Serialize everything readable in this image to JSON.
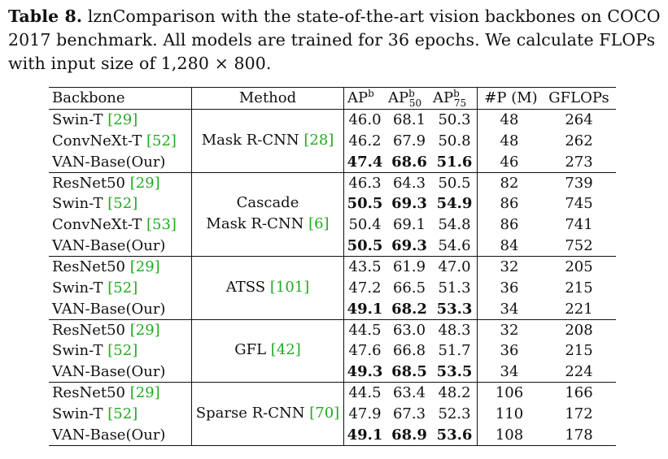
{
  "caption": {
    "label": "Table 8.",
    "text": "lznComparison with the state-of-the-art vision backbones on COCO 2017 benchmark. All models are trained for 36 epochs. We calculate FLOPs with input size of 1,280 × 800."
  },
  "headers": {
    "backbone": "Backbone",
    "method": "Method",
    "ap": "AP",
    "ap_sup": "b",
    "ap50": "AP",
    "ap50_sup": "b",
    "ap50_sub": "50",
    "ap75": "AP",
    "ap75_sup": "b",
    "ap75_sub": "75",
    "params": "#P (M)",
    "gflops": "GFLOPs"
  },
  "colors": {
    "citation": "#22aa22",
    "text": "#111111"
  },
  "groups": [
    {
      "method": [
        "Mask R-CNN ",
        "[28]"
      ],
      "rows": [
        {
          "backbone": "Swin-T ",
          "cite": "[29]",
          "ap": "46.0",
          "ap50": "68.1",
          "ap75": "50.3",
          "params": "48",
          "gflops": "264",
          "bold": [
            false,
            false,
            false
          ]
        },
        {
          "backbone": "ConvNeXt-T ",
          "cite": "[52]",
          "ap": "46.2",
          "ap50": "67.9",
          "ap75": "50.8",
          "params": "48",
          "gflops": "262",
          "bold": [
            false,
            false,
            false
          ]
        },
        {
          "backbone": "VAN-Base(Our)",
          "cite": "",
          "ap": "47.4",
          "ap50": "68.6",
          "ap75": "51.6",
          "params": "46",
          "gflops": "273",
          "bold": [
            true,
            true,
            true
          ]
        }
      ]
    },
    {
      "method": [
        "Cascade",
        "Mask R-CNN ",
        "[6]"
      ],
      "rows": [
        {
          "backbone": "ResNet50 ",
          "cite": "[29]",
          "ap": "46.3",
          "ap50": "64.3",
          "ap75": "50.5",
          "params": "82",
          "gflops": "739",
          "bold": [
            false,
            false,
            false
          ]
        },
        {
          "backbone": "Swin-T ",
          "cite": "[52]",
          "ap": "50.5",
          "ap50": "69.3",
          "ap75": "54.9",
          "params": "86",
          "gflops": "745",
          "bold": [
            true,
            true,
            true
          ]
        },
        {
          "backbone": "ConvNeXt-T ",
          "cite": "[53]",
          "ap": "50.4",
          "ap50": "69.1",
          "ap75": "54.8",
          "params": "86",
          "gflops": "741",
          "bold": [
            false,
            false,
            false
          ]
        },
        {
          "backbone": "VAN-Base(Our)",
          "cite": "",
          "ap": "50.5",
          "ap50": "69.3",
          "ap75": "54.6",
          "params": "84",
          "gflops": "752",
          "bold": [
            true,
            true,
            false
          ]
        }
      ]
    },
    {
      "method": [
        "ATSS ",
        "[101]"
      ],
      "rows": [
        {
          "backbone": "ResNet50 ",
          "cite": "[29]",
          "ap": "43.5",
          "ap50": "61.9",
          "ap75": "47.0",
          "params": "32",
          "gflops": "205",
          "bold": [
            false,
            false,
            false
          ]
        },
        {
          "backbone": "Swin-T ",
          "cite": "[52]",
          "ap": "47.2",
          "ap50": "66.5",
          "ap75": "51.3",
          "params": "36",
          "gflops": "215",
          "bold": [
            false,
            false,
            false
          ]
        },
        {
          "backbone": "VAN-Base(Our)",
          "cite": "",
          "ap": "49.1",
          "ap50": "68.2",
          "ap75": "53.3",
          "params": "34",
          "gflops": "221",
          "bold": [
            true,
            true,
            true
          ]
        }
      ]
    },
    {
      "method": [
        "GFL ",
        "[42]"
      ],
      "rows": [
        {
          "backbone": "ResNet50 ",
          "cite": "[29]",
          "ap": "44.5",
          "ap50": "63.0",
          "ap75": "48.3",
          "params": "32",
          "gflops": "208",
          "bold": [
            false,
            false,
            false
          ]
        },
        {
          "backbone": "Swin-T ",
          "cite": "[52]",
          "ap": "47.6",
          "ap50": "66.8",
          "ap75": "51.7",
          "params": "36",
          "gflops": "215",
          "bold": [
            false,
            false,
            false
          ]
        },
        {
          "backbone": "VAN-Base(Our)",
          "cite": "",
          "ap": "49.3",
          "ap50": "68.5",
          "ap75": "53.5",
          "params": "34",
          "gflops": "224",
          "bold": [
            true,
            true,
            true
          ]
        }
      ]
    },
    {
      "method": [
        "Sparse R-CNN ",
        "[70]"
      ],
      "rows": [
        {
          "backbone": "ResNet50 ",
          "cite": "[29]",
          "ap": "44.5",
          "ap50": "63.4",
          "ap75": "48.2",
          "params": "106",
          "gflops": "166",
          "bold": [
            false,
            false,
            false
          ]
        },
        {
          "backbone": "Swin-T ",
          "cite": "[52]",
          "ap": "47.9",
          "ap50": "67.3",
          "ap75": "52.3",
          "params": "110",
          "gflops": "172",
          "bold": [
            false,
            false,
            false
          ]
        },
        {
          "backbone": "VAN-Base(Our)",
          "cite": "",
          "ap": "49.1",
          "ap50": "68.9",
          "ap75": "53.6",
          "params": "108",
          "gflops": "178",
          "bold": [
            true,
            true,
            true
          ]
        }
      ]
    }
  ]
}
